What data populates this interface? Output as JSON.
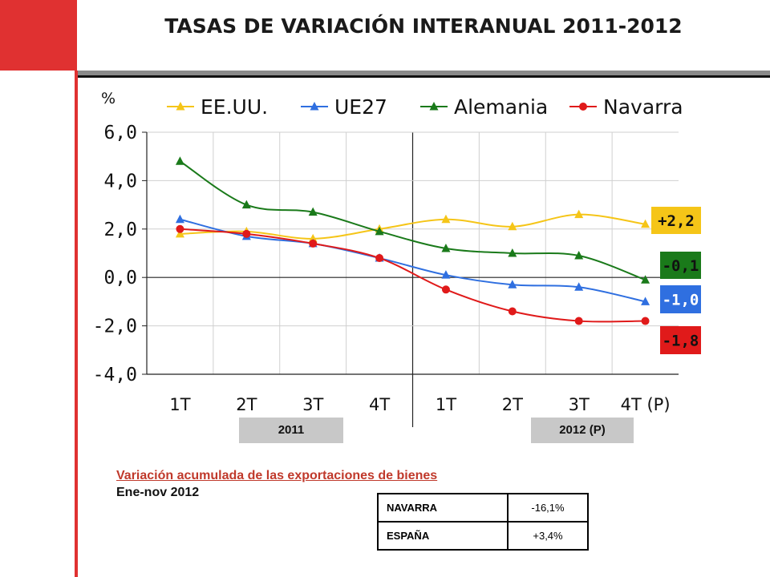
{
  "page": {
    "title": "TASAS DE VARIACIÓN INTERANUAL 2011-2012"
  },
  "chart_data": {
    "type": "line",
    "ylabel": "%",
    "categories": [
      "1T",
      "2T",
      "3T",
      "4T",
      "1T",
      "2T",
      "3T",
      "4T (P)"
    ],
    "ylim": [
      -4,
      6
    ],
    "yticks": [
      "6,0",
      "4,0",
      "2,0",
      "0,0",
      "-2,0",
      "-4,0"
    ],
    "grid": true,
    "legend": "top",
    "year_groups": [
      "2011",
      "2012 (P)"
    ],
    "series": [
      {
        "name": "EE.UU.",
        "color": "#f5c518",
        "marker": "triangle",
        "values": [
          1.8,
          1.9,
          1.6,
          2.0,
          2.4,
          2.1,
          2.6,
          2.2
        ],
        "end_label": "+2,2"
      },
      {
        "name": "UE27",
        "color": "#2f6fe0",
        "marker": "triangle",
        "values": [
          2.4,
          1.7,
          1.4,
          0.8,
          0.1,
          -0.3,
          -0.4,
          -1.0
        ],
        "end_label": "-1,0"
      },
      {
        "name": "Alemania",
        "color": "#1a7a1a",
        "marker": "triangle",
        "values": [
          4.8,
          3.0,
          2.7,
          1.9,
          1.2,
          1.0,
          0.9,
          -0.1
        ],
        "end_label": "-0,1"
      },
      {
        "name": "Navarra",
        "color": "#e01a1a",
        "marker": "circle",
        "values": [
          2.0,
          1.8,
          1.4,
          0.8,
          -0.5,
          -1.4,
          -1.8,
          -1.8
        ],
        "end_label": "-1,8"
      }
    ]
  },
  "exports": {
    "heading": "Variación acumulada de las exportaciones de bienes",
    "period": "Ene-nov 2012",
    "rows": [
      {
        "label": "NAVARRA",
        "value": "-16,1%"
      },
      {
        "label": "ESPAÑA",
        "value": "+3,4%"
      }
    ]
  }
}
